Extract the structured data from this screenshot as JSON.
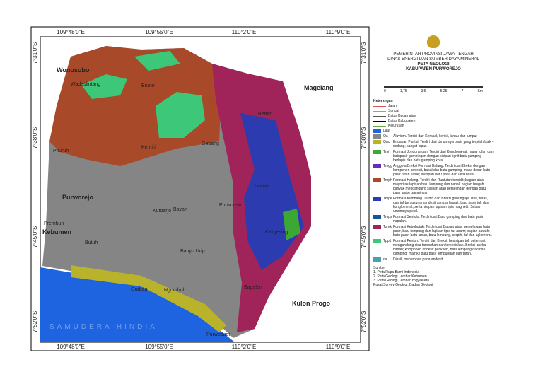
{
  "map": {
    "lon_labels": [
      "109°48'0\"E",
      "109°55'0\"E",
      "110°2'0\"E",
      "110°9'0\"E"
    ],
    "lat_labels": [
      "7°31'0\"S",
      "7°38'0\"S",
      "7°45'0\"S",
      "7°52'0\"S"
    ],
    "places": [
      "Wonosobo",
      "Magelang",
      "Wadaslintang",
      "Bruno",
      "Bener",
      "Pituruh",
      "Kemiri",
      "Gebang",
      "Loano",
      "Purworejo",
      "Kebumen",
      "Prembun",
      "Kutoarjo",
      "Bayan",
      "Purworejo",
      "Butuh",
      "Banyu Urip",
      "Kaligesing",
      "Grabag",
      "Ngombol",
      "Bagelen",
      "Kulon Progo",
      "Purwodadi",
      "SAMUDERA HINDIA"
    ]
  },
  "legend": {
    "header": [
      "PEMERINTAH PROVINSI JAWA TENGAH",
      "DINAS ENERGI DAN SUMBER DAYA MINERAL",
      "PETA GEOLOGI",
      "KABUPATEN PURWOREJO"
    ],
    "scale": [
      "0",
      "1,75",
      "3,5",
      "5,25",
      "7",
      "Km"
    ],
    "title": "Keterangan",
    "lines": [
      {
        "label": "Jalan",
        "color": "#d9534f"
      },
      {
        "label": "Sungai",
        "color": "#6fa8dc"
      },
      {
        "label": "Batas Kecamatan",
        "color": "#555555"
      },
      {
        "label": "Batas Kabupaten",
        "color": "#000000"
      },
      {
        "label": "Kelurusan",
        "color": "#6aa84f"
      }
    ],
    "sea": {
      "label": "Laut",
      "color": "#1e64e0"
    },
    "units": [
      {
        "code": "Qa",
        "color": "#858585",
        "text": "Aluvium. Terdiri dari Kerakal, kerikil, lanau dan lumpur"
      },
      {
        "code": "Qac",
        "color": "#b9b32c",
        "text": "Endapan Pantai. Terdiri dari Umumnya pasir yang terpilah baik - sedang, sangat lepas"
      },
      {
        "code": "Tmj",
        "color": "#3aa832",
        "text": "Formasi Jonggrangan. Terdiri dari Konglomerat, napal tufan dan batupasir gampingan dengan sisipan lignit batu gamping berlapis dan batu gamping koral."
      },
      {
        "code": "Tmgg",
        "color": "#6a2bb8",
        "text": "Anggota Breksi Formasi Halang. Terdiri dari Breksi dengan komponen andesit, basal dan batu gamping, masa dasar batu pasir tufan kasar; sisispan batu pasir dan lava basal."
      },
      {
        "code": "Tmph",
        "color": "#a84a2a",
        "text": "Formasi Halang. Terdiri dari Runtutan turbidit; bagian atas mayoritas lapisan batu lempung dan napal, bagian tengah banyak mengandung sisipan atau perselingan dengan batu pasir wake gampingan"
      },
      {
        "code": "Tmpk",
        "color": "#2d3bb0",
        "text": "Formasi Kumbang. Terdiri dan Breksi gunungapi, lava, retas, dan tuf bersusunan andesit sampai basalt; batu pasir tuf, dan konglomerat, serta sisipan lapisan tipis magnetit. Satuan umumnya pejal."
      },
      {
        "code": "Tmps",
        "color": "#14559e",
        "text": "Formasi Sentolo. Terdiri dari Batu gamping dan batu pasir napalan."
      },
      {
        "code": "Tomk",
        "color": "#a0245a",
        "text": "Formasi Kebobutak. Terdiri dari Bagian atas: perselingan batu pasir, batu lempung dan lapisan tipis tuf asam; bagian bawah: batu pasir, batu lanau, batu lempung, serpih, tuf dan aglomerat."
      },
      {
        "code": "Tpp1",
        "color": "#3cc878",
        "text": "Formasi Penion. Terdiri dari Breksi, besisipan tuf; setempat mengandung sisa tumbuhan dan terkesiskan. Breksi aneka bahan; komponen andesit piroksen, batu lempung dan batu gamping; matriks batu pasir lempungan dan tufan."
      },
      {
        "code": "da",
        "color": "#4aa0b0",
        "text": "Diasil, menerobos pada andesit."
      }
    ],
    "sources": [
      "Sumber :",
      "1. Peta Rupa Bumi Indonesia",
      "2. Peta Geologi Lembar Kebumen",
      "3. Peta Geologi Lembar Yogyakarta",
      "Pusat Survey Geologi, Badan Geologi"
    ]
  }
}
